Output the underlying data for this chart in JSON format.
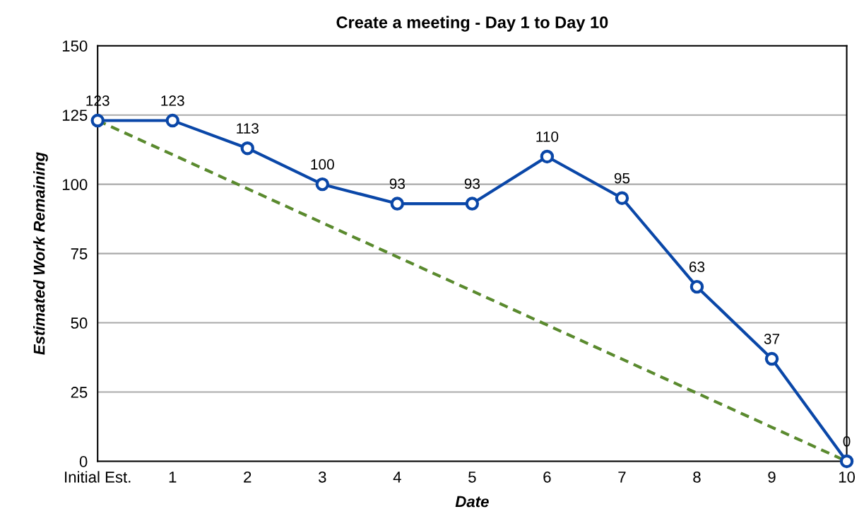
{
  "chart_data": {
    "type": "line",
    "title": "Create a meeting - Day 1 to Day 10",
    "xlabel": "Date",
    "ylabel": "Estimated Work Remaining",
    "categories": [
      "Initial Est.",
      "1",
      "2",
      "3",
      "4",
      "5",
      "6",
      "7",
      "8",
      "9",
      "10"
    ],
    "series": [
      {
        "color": "#5a8a2e",
        "line_style": "dashed",
        "marker": "none",
        "values": [
          123,
          110.7,
          98.4,
          86.1,
          73.8,
          61.5,
          49.2,
          36.9,
          24.6,
          12.3,
          0
        ]
      },
      {
        "color": "#0a47a8",
        "line_style": "solid",
        "marker": "circle",
        "values": [
          123,
          123,
          113,
          100,
          93,
          93,
          110,
          95,
          63,
          37,
          0
        ],
        "value_labels": [
          "123",
          "123",
          "113",
          "100",
          "93",
          "93",
          "110",
          "95",
          "63",
          "37",
          "0"
        ]
      }
    ],
    "ylim": [
      0,
      150
    ],
    "yticks": [
      0,
      25,
      50,
      75,
      100,
      125,
      150
    ],
    "grid": "y",
    "legend": false
  }
}
